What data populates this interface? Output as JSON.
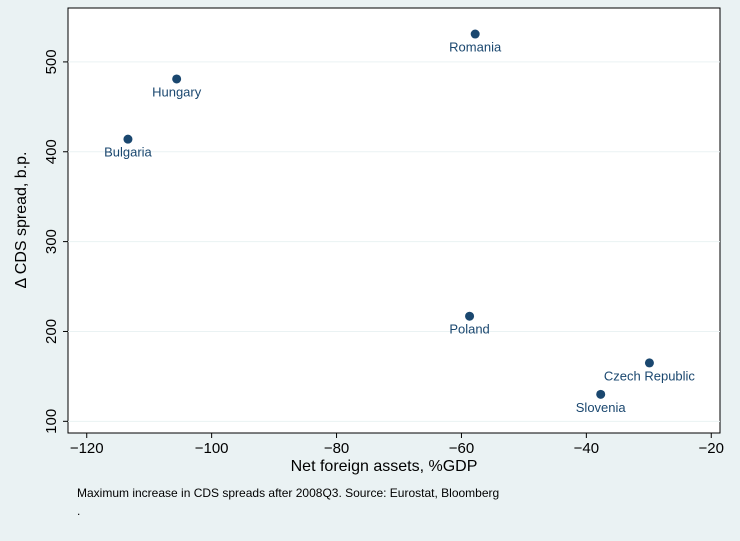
{
  "chart_data": {
    "type": "scatter",
    "x_label": "Net foreign assets, %GDP",
    "y_label": "Δ CDS spread, b.p.",
    "point_labels": [
      "Romania",
      "Hungary",
      "Bulgaria",
      "Poland",
      "Czech Republic",
      "Slovenia"
    ],
    "x": [
      -57.8,
      -105.6,
      -113.4,
      -58.7,
      -29.9,
      -37.7
    ],
    "values": [
      531,
      481,
      414,
      217,
      165,
      130
    ],
    "color": "#1a476f",
    "xlim": [
      -123,
      -18.6
    ],
    "ylim": [
      87,
      560
    ],
    "xticks": [
      {
        "value": -120,
        "label": "−120"
      },
      {
        "value": -100,
        "label": "−100"
      },
      {
        "value": -80,
        "label": "−80"
      },
      {
        "value": -60,
        "label": "−60"
      },
      {
        "value": -40,
        "label": "−40"
      },
      {
        "value": -20,
        "label": "−20"
      }
    ],
    "yticks": [
      100,
      200,
      300,
      400,
      500
    ],
    "grid": true,
    "note": [
      "Maximum increase in CDS spreads after 2008Q3. Source: Eurostat, Bloomberg",
      "."
    ]
  }
}
